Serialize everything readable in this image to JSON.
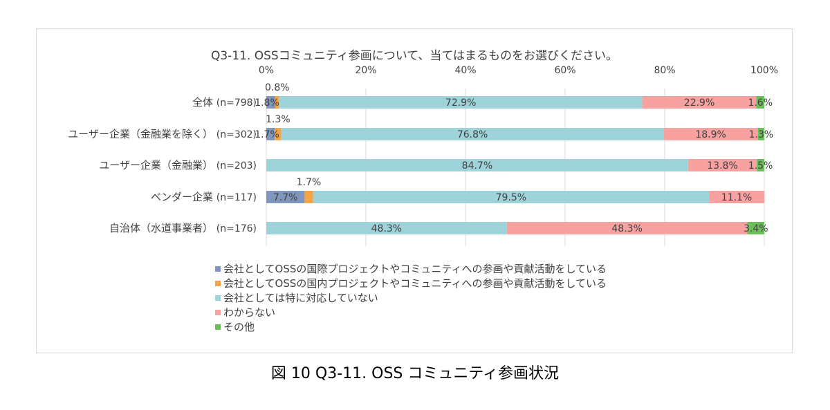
{
  "chart_data": {
    "type": "bar",
    "orientation": "horizontal",
    "stacked": "percent",
    "title": "Q3-11. OSSコミュニティ参画について、当てはまるものをお選びください。",
    "xlim": [
      0,
      100
    ],
    "x_ticks": [
      "0%",
      "20%",
      "40%",
      "60%",
      "80%",
      "100%"
    ],
    "categories": [
      {
        "label": "全体",
        "n": "(n=798)"
      },
      {
        "label": "ユーザー企業（金融業を除く）",
        "n": "(n=302)"
      },
      {
        "label": "ユーザー企業（金融業）",
        "n": "(n=203)"
      },
      {
        "label": "ベンダー企業",
        "n": "(n=117)"
      },
      {
        "label": "自治体（水道事業者）",
        "n": "(n=176)"
      }
    ],
    "series": [
      {
        "name": "会社としてOSSの国際プロジェクトやコミュニティへの参画や貢献活動をしている",
        "color": "#7f96bd",
        "values": [
          1.8,
          1.7,
          0,
          7.7,
          0
        ],
        "labels": [
          "1.8%",
          "1.7%",
          "",
          "7.7%",
          ""
        ]
      },
      {
        "name": "会社としてOSSの国内プロジェクトやコミュニティへの参画や貢献活動をしている",
        "color": "#f5a447",
        "values": [
          0.8,
          1.3,
          0,
          1.7,
          0
        ],
        "labels": [
          "0.8%",
          "1.3%",
          "",
          "1.7%",
          ""
        ]
      },
      {
        "name": "会社としては特に対応していない",
        "color": "#9ed4d9",
        "values": [
          72.9,
          76.8,
          84.7,
          79.5,
          48.3
        ],
        "labels": [
          "72.9%",
          "76.8%",
          "84.7%",
          "79.5%",
          "48.3%"
        ]
      },
      {
        "name": "わからない",
        "color": "#f7a1a1",
        "values": [
          22.9,
          18.9,
          13.8,
          11.1,
          48.3
        ],
        "labels": [
          "22.9%",
          "18.9%",
          "13.8%",
          "11.1%",
          "48.3%"
        ]
      },
      {
        "name": "その他",
        "color": "#6cbe5a",
        "values": [
          1.6,
          1.3,
          1.5,
          0,
          3.4
        ],
        "labels": [
          "1.6%",
          "1.3%",
          "1.5%",
          "",
          "3.4%"
        ]
      }
    ]
  },
  "caption": "図  10 Q3-11. OSS  コミュニティ参画状況"
}
